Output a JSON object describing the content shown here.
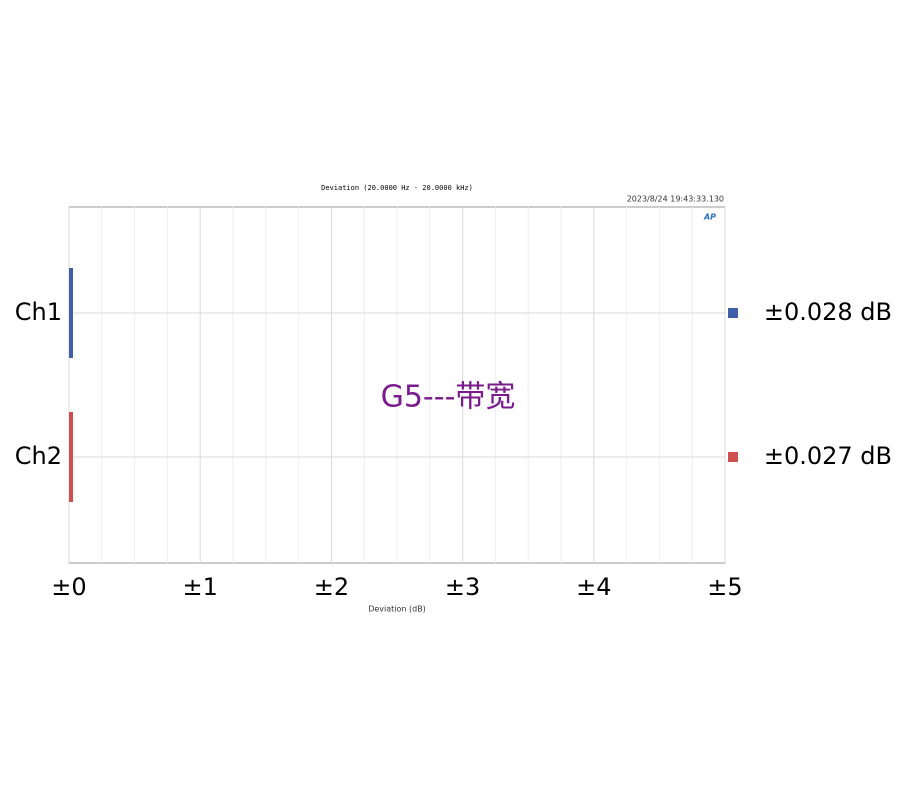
{
  "chart_data": {
    "type": "bar",
    "orientation": "horizontal",
    "title": "Deviation (20.0000 Hz - 20.0000 kHz)",
    "timestamp": "2023/8/24 19:43:33.130",
    "logo": "AP",
    "watermark": "G5---带宽",
    "xlabel": "Deviation (dB)",
    "categories": [
      "Ch1",
      "Ch2"
    ],
    "series": [
      {
        "name": "Ch1",
        "color": "#3f5fa8",
        "values": [
          0.028,
          null
        ],
        "value_labels": [
          "±0.028 dB",
          null
        ]
      },
      {
        "name": "Ch2",
        "color": "#d0504f",
        "values": [
          null,
          0.027
        ],
        "value_labels": [
          null,
          "±0.027 dB"
        ]
      }
    ],
    "xlim": [
      0,
      5
    ],
    "xticks": [
      {
        "value": 0,
        "label": "±0"
      },
      {
        "value": 1,
        "label": "±1"
      },
      {
        "value": 2,
        "label": "±2"
      },
      {
        "value": 3,
        "label": "±3"
      },
      {
        "value": 4,
        "label": "±4"
      },
      {
        "value": 5,
        "label": "±5"
      }
    ],
    "xminorticks": [
      0.25,
      0.5,
      0.75,
      1.25,
      1.5,
      1.75,
      2.25,
      2.5,
      2.75,
      3.25,
      3.5,
      3.75,
      4.25,
      4.5,
      4.75
    ],
    "grid": true
  }
}
